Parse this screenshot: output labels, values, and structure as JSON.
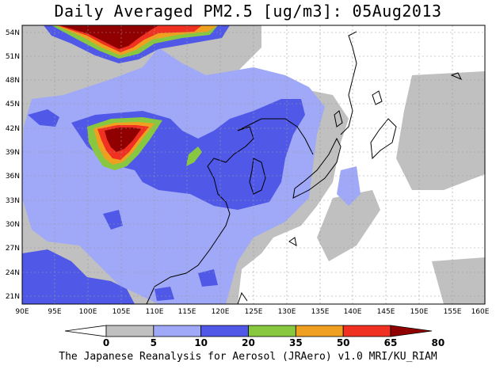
{
  "title": "Daily Averaged PM2.5 [ug/m3]: 05Aug2013",
  "footer": "The Japanese Reanalysis for Aerosol (JRAero) v1.0 MRI/KU_RIAM",
  "map": {
    "lon_range": [
      90,
      160
    ],
    "lat_range": [
      20,
      55
    ],
    "grid": true,
    "x_tick_labels": [
      "90E",
      "95E",
      "100E",
      "105E",
      "110E",
      "115E",
      "120E",
      "125E",
      "130E",
      "135E",
      "140E",
      "145E",
      "150E",
      "155E",
      "160E"
    ],
    "y_tick_labels": [
      "54N",
      "51N",
      "48N",
      "45N",
      "42N",
      "39N",
      "36N",
      "33N",
      "30N",
      "27N",
      "24N",
      "21N"
    ]
  },
  "colorbar": {
    "labels": [
      "0",
      "5",
      "10",
      "20",
      "35",
      "50",
      "65",
      "80"
    ],
    "colors": [
      "#ffffff",
      "#c0c0c0",
      "#a0a8f8",
      "#5058e8",
      "#88c840",
      "#f0a020",
      "#f03020",
      "#900000"
    ]
  }
}
